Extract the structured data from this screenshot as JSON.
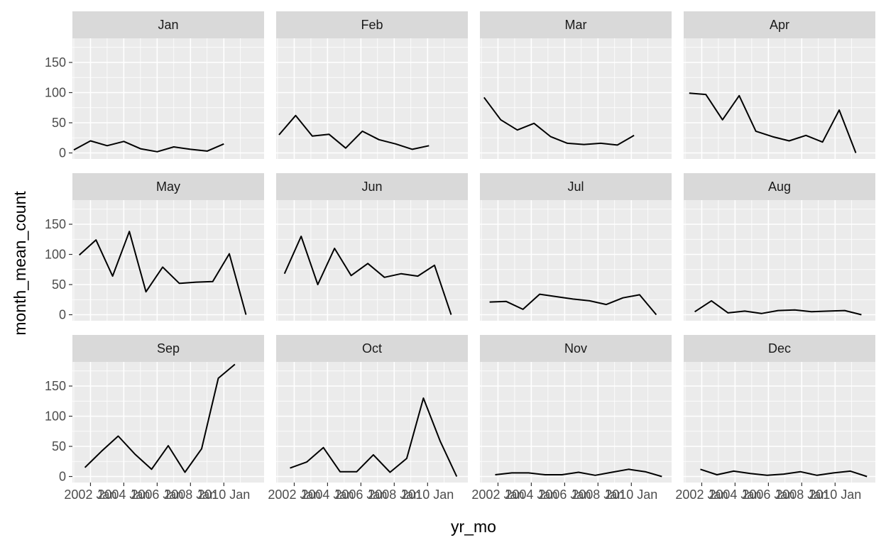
{
  "chart_data": {
    "type": "line",
    "facet_layout": "3 rows x 4 columns",
    "xlabel": "yr_mo",
    "ylabel": "month_mean_count",
    "ylim": [
      -10,
      190
    ],
    "y_ticks": [
      0,
      50,
      100,
      150
    ],
    "y_tick_labels": [
      "0",
      "50",
      "100",
      "150"
    ],
    "x_domain": [
      "2000-12-01",
      "2012-06-01"
    ],
    "x_tick_labels": [
      "2002 Jan",
      "2004 Jan",
      "2006 Jan",
      "2008 Jan",
      "2010 Jan"
    ],
    "x_tick_dates": [
      "2002-01-01",
      "2004-01-01",
      "2006-01-01",
      "2008-01-01",
      "2010-01-01"
    ],
    "grid": true,
    "line_color": "#000000",
    "panel_background": "#ebebeb",
    "strip_background": "#d9d9d9",
    "panels": [
      {
        "name": "Jan",
        "x": [
          "2001-01-01",
          "2002-01-01",
          "2003-01-01",
          "2004-01-01",
          "2005-01-01",
          "2006-01-01",
          "2007-01-01",
          "2008-01-01",
          "2009-01-01",
          "2010-01-01"
        ],
        "values": [
          5,
          20,
          12,
          19,
          7,
          2,
          10,
          6,
          3,
          15
        ]
      },
      {
        "name": "Feb",
        "x": [
          "2001-02-01",
          "2002-02-01",
          "2003-02-01",
          "2004-02-01",
          "2005-02-01",
          "2006-02-01",
          "2007-02-01",
          "2008-02-01",
          "2009-02-01",
          "2010-02-01"
        ],
        "values": [
          30,
          62,
          28,
          31,
          8,
          36,
          22,
          15,
          6,
          12
        ]
      },
      {
        "name": "Mar",
        "x": [
          "2001-03-01",
          "2002-03-01",
          "2003-03-01",
          "2004-03-01",
          "2005-03-01",
          "2006-03-01",
          "2007-03-01",
          "2008-03-01",
          "2009-03-01",
          "2010-03-01"
        ],
        "values": [
          92,
          55,
          38,
          49,
          27,
          16,
          14,
          16,
          13,
          29
        ]
      },
      {
        "name": "Apr",
        "x": [
          "2001-04-01",
          "2002-04-01",
          "2003-04-01",
          "2004-04-01",
          "2005-04-01",
          "2006-04-01",
          "2007-04-01",
          "2008-04-01",
          "2009-04-01",
          "2010-04-01",
          "2011-04-01"
        ],
        "values": [
          99,
          97,
          55,
          95,
          36,
          27,
          20,
          29,
          18,
          71,
          0
        ]
      },
      {
        "name": "May",
        "x": [
          "2001-05-01",
          "2002-05-01",
          "2003-05-01",
          "2004-05-01",
          "2005-05-01",
          "2006-05-01",
          "2007-05-01",
          "2008-05-01",
          "2009-05-01",
          "2010-05-01",
          "2011-05-01"
        ],
        "values": [
          99,
          124,
          64,
          138,
          38,
          79,
          52,
          54,
          55,
          101,
          0
        ]
      },
      {
        "name": "Jun",
        "x": [
          "2001-06-01",
          "2002-06-01",
          "2003-06-01",
          "2004-06-01",
          "2005-06-01",
          "2006-06-01",
          "2007-06-01",
          "2008-06-01",
          "2009-06-01",
          "2010-06-01",
          "2011-06-01"
        ],
        "values": [
          68,
          130,
          50,
          110,
          65,
          85,
          62,
          68,
          64,
          82,
          0
        ]
      },
      {
        "name": "Jul",
        "x": [
          "2001-07-01",
          "2002-07-01",
          "2003-07-01",
          "2004-07-01",
          "2005-07-01",
          "2006-07-01",
          "2007-07-01",
          "2008-07-01",
          "2009-07-01",
          "2010-07-01",
          "2011-07-01"
        ],
        "values": [
          21,
          22,
          9,
          34,
          30,
          26,
          23,
          17,
          28,
          33,
          0
        ]
      },
      {
        "name": "Aug",
        "x": [
          "2001-08-01",
          "2002-08-01",
          "2003-08-01",
          "2004-08-01",
          "2005-08-01",
          "2006-08-01",
          "2007-08-01",
          "2008-08-01",
          "2009-08-01",
          "2010-08-01",
          "2011-08-01"
        ],
        "values": [
          5,
          23,
          3,
          6,
          2,
          7,
          8,
          5,
          6,
          7,
          0
        ]
      },
      {
        "name": "Sep",
        "x": [
          "2001-09-01",
          "2002-09-01",
          "2003-09-01",
          "2004-09-01",
          "2005-09-01",
          "2006-09-01",
          "2007-09-01",
          "2008-09-01",
          "2009-09-01",
          "2010-09-01"
        ],
        "values": [
          15,
          42,
          67,
          37,
          12,
          51,
          7,
          46,
          163,
          186
        ]
      },
      {
        "name": "Oct",
        "x": [
          "2001-10-01",
          "2002-10-01",
          "2003-10-01",
          "2004-10-01",
          "2005-10-01",
          "2006-10-01",
          "2007-10-01",
          "2008-10-01",
          "2009-10-01",
          "2010-10-01",
          "2011-10-01"
        ],
        "values": [
          14,
          24,
          48,
          8,
          8,
          36,
          7,
          30,
          130,
          59,
          0
        ]
      },
      {
        "name": "Nov",
        "x": [
          "2001-11-01",
          "2002-11-01",
          "2003-11-01",
          "2004-11-01",
          "2005-11-01",
          "2006-11-01",
          "2007-11-01",
          "2008-11-01",
          "2009-11-01",
          "2010-11-01",
          "2011-11-01"
        ],
        "values": [
          3,
          6,
          6,
          3,
          3,
          7,
          2,
          7,
          12,
          8,
          0
        ]
      },
      {
        "name": "Dec",
        "x": [
          "2001-12-01",
          "2002-12-01",
          "2003-12-01",
          "2004-12-01",
          "2005-12-01",
          "2006-12-01",
          "2007-12-01",
          "2008-12-01",
          "2009-12-01",
          "2010-12-01",
          "2011-12-01"
        ],
        "values": [
          12,
          3,
          9,
          5,
          2,
          4,
          8,
          2,
          6,
          9,
          0
        ]
      }
    ]
  }
}
